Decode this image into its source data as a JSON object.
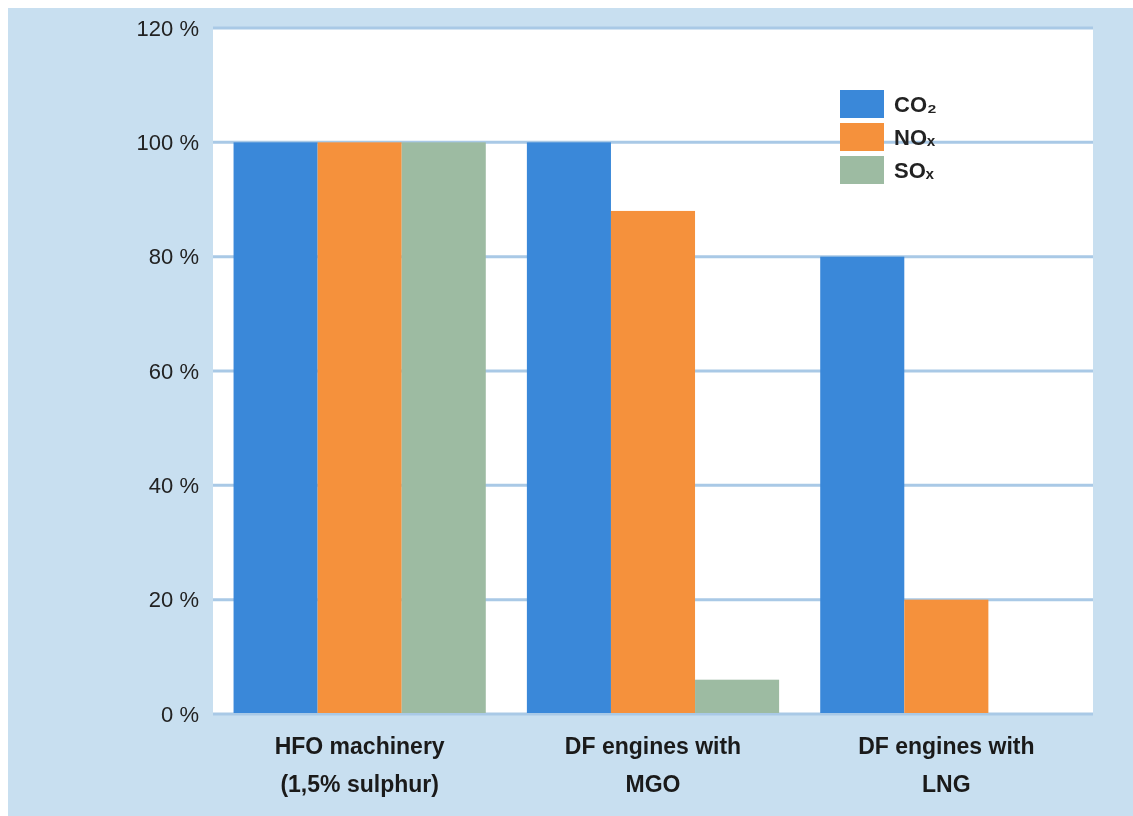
{
  "chart_data": {
    "type": "bar",
    "categories": [
      "HFO machinery\n(1,5% sulphur)",
      "DF engines with\nMGO",
      "DF engines with\nLNG"
    ],
    "series": [
      {
        "name": "CO₂",
        "color": "#3a88d9",
        "values": [
          100,
          100,
          80
        ]
      },
      {
        "name": "NOₓ",
        "color": "#f5913c",
        "values": [
          100,
          88,
          20
        ]
      },
      {
        "name": "SOₓ",
        "color": "#9dbba2",
        "values": [
          100,
          6,
          0
        ]
      }
    ],
    "ylim": [
      0,
      120
    ],
    "yticks": [
      {
        "value": 0,
        "label": "0 %"
      },
      {
        "value": 20,
        "label": "20 %"
      },
      {
        "value": 40,
        "label": "40 %"
      },
      {
        "value": 60,
        "label": "60 %"
      },
      {
        "value": 80,
        "label": "80 %"
      },
      {
        "value": 100,
        "label": "100 %"
      },
      {
        "value": 120,
        "label": "120 %"
      }
    ],
    "grid": "y",
    "legend": "top right"
  }
}
